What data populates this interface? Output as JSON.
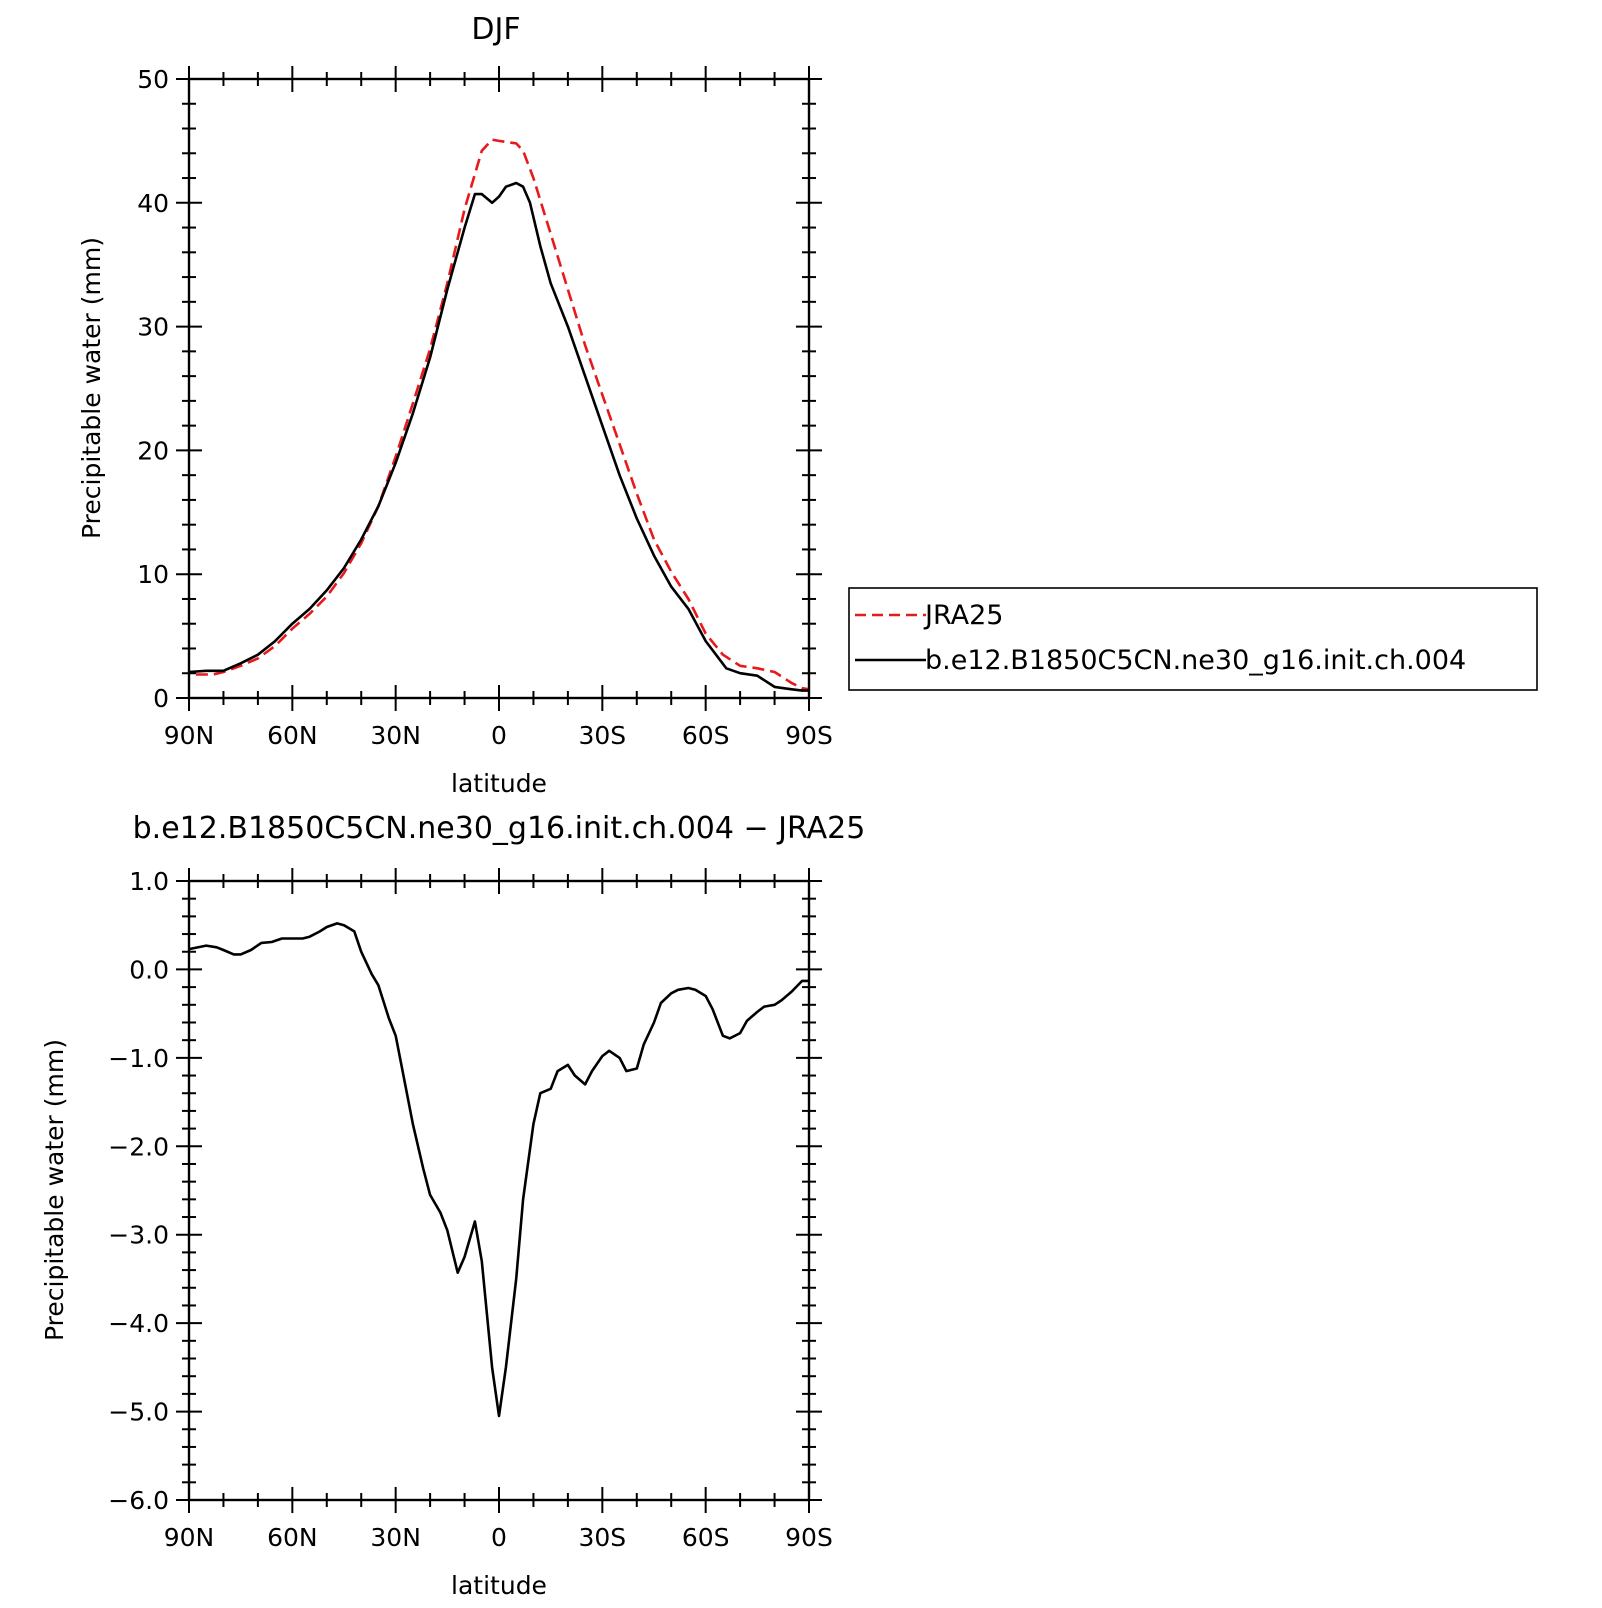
{
  "chart_data": [
    {
      "type": "line",
      "title": "DJF",
      "xlabel": "latitude",
      "ylabel": "Precipitable water (mm)",
      "xlim": [
        90,
        -90
      ],
      "ylim": [
        0,
        50
      ],
      "x_tick_values": [
        90,
        60,
        30,
        0,
        -30,
        -60,
        -90
      ],
      "x_tick_labels": [
        "90N",
        "60N",
        "30N",
        "0",
        "30S",
        "60S",
        "90S"
      ],
      "y_tick_values": [
        0,
        10,
        20,
        30,
        40,
        50
      ],
      "y_tick_labels": [
        "0",
        "10",
        "20",
        "30",
        "40",
        "50"
      ],
      "legend": {
        "placement": "right",
        "boxed": true
      },
      "series": [
        {
          "name": "JRA25",
          "color": "#e8191b",
          "dash": "dashed",
          "x": [
            88,
            83,
            80,
            75,
            70,
            65,
            60,
            55,
            50,
            45,
            40,
            35,
            30,
            25,
            20,
            15,
            10,
            5,
            2,
            0,
            -5,
            -7,
            -10,
            -15,
            -20,
            -25,
            -30,
            -35,
            -40,
            -45,
            -50,
            -55,
            -60,
            -65,
            -70,
            -75,
            -80,
            -85,
            -88,
            -90
          ],
          "y": [
            1.9,
            1.9,
            2.1,
            2.6,
            3.2,
            4.2,
            5.6,
            6.8,
            8.2,
            10.1,
            12.5,
            15.5,
            19.5,
            23.8,
            28.2,
            33.5,
            39.5,
            44.2,
            45.1,
            45.0,
            44.8,
            44.2,
            42.0,
            37.5,
            33.0,
            28.5,
            24.5,
            20.5,
            16.5,
            12.8,
            10.2,
            8.0,
            5.2,
            3.5,
            2.6,
            2.4,
            2.1,
            1.2,
            0.8,
            0.7
          ]
        },
        {
          "name": "b.e12.B1850C5CN.ne30_g16.init.ch.004",
          "color": "#000000",
          "dash": "solid",
          "x": [
            90,
            85,
            80,
            75,
            70,
            65,
            60,
            55,
            50,
            45,
            40,
            35,
            30,
            25,
            20,
            15,
            10,
            7,
            5,
            2,
            0,
            -2,
            -5,
            -7,
            -9,
            -12,
            -15,
            -20,
            -25,
            -30,
            -35,
            -40,
            -45,
            -50,
            -55,
            -60,
            -63,
            -66,
            -70,
            -75,
            -80,
            -85,
            -88,
            -90
          ],
          "y": [
            2.1,
            2.2,
            2.2,
            2.8,
            3.5,
            4.6,
            6.0,
            7.2,
            8.7,
            10.5,
            12.8,
            15.5,
            19.0,
            23.0,
            27.5,
            33.0,
            38.0,
            40.7,
            40.7,
            40.0,
            40.5,
            41.3,
            41.6,
            41.3,
            40.0,
            36.5,
            33.5,
            30.0,
            26.0,
            22.0,
            18.0,
            14.5,
            11.5,
            9.0,
            7.2,
            4.6,
            3.5,
            2.4,
            2.0,
            1.8,
            0.9,
            0.7,
            0.6,
            0.6
          ]
        }
      ]
    },
    {
      "type": "line",
      "title": "b.e12.B1850C5CN.ne30_g16.init.ch.004 − JRA25",
      "xlabel": "latitude",
      "ylabel": "Precipitable water (mm)",
      "xlim": [
        90,
        -90
      ],
      "ylim": [
        -6.0,
        1.0
      ],
      "x_tick_values": [
        90,
        60,
        30,
        0,
        -30,
        -60,
        -90
      ],
      "x_tick_labels": [
        "90N",
        "60N",
        "30N",
        "0",
        "30S",
        "60S",
        "90S"
      ],
      "y_tick_values": [
        1.0,
        0.0,
        -1.0,
        -2.0,
        -3.0,
        -4.0,
        -5.0,
        -6.0
      ],
      "y_tick_labels": [
        "1.0",
        "0.0",
        "−1.0",
        "−2.0",
        "−3.0",
        "−4.0",
        "−5.0",
        "−6.0"
      ],
      "series": [
        {
          "color": "#000000",
          "dash": "solid",
          "x": [
            90,
            85,
            82,
            80,
            77,
            75,
            72,
            69,
            66,
            63,
            60,
            57,
            55,
            52,
            50,
            47,
            45,
            42,
            40,
            37,
            35,
            32,
            30,
            28,
            25,
            22,
            20,
            17,
            15,
            12,
            10,
            7,
            5,
            2,
            0,
            -2,
            -5,
            -7,
            -10,
            -12,
            -15,
            -17,
            -20,
            -22,
            -25,
            -27,
            -30,
            -32,
            -35,
            -37,
            -40,
            -42,
            -45,
            -47,
            -50,
            -52,
            -55,
            -57,
            -60,
            -62,
            -65,
            -67,
            -70,
            -72,
            -75,
            -77,
            -80,
            -82,
            -85,
            -88,
            -90
          ],
          "y": [
            0.23,
            0.27,
            0.25,
            0.22,
            0.17,
            0.17,
            0.22,
            0.3,
            0.31,
            0.35,
            0.35,
            0.35,
            0.37,
            0.43,
            0.48,
            0.52,
            0.5,
            0.43,
            0.2,
            -0.05,
            -0.18,
            -0.55,
            -0.75,
            -1.15,
            -1.75,
            -2.25,
            -2.55,
            -2.75,
            -2.95,
            -3.43,
            -3.25,
            -2.85,
            -3.3,
            -4.5,
            -5.05,
            -4.5,
            -3.5,
            -2.6,
            -1.75,
            -1.4,
            -1.35,
            -1.15,
            -1.08,
            -1.2,
            -1.3,
            -1.15,
            -0.98,
            -0.92,
            -1.0,
            -1.15,
            -1.12,
            -0.85,
            -0.6,
            -0.38,
            -0.27,
            -0.23,
            -0.21,
            -0.23,
            -0.3,
            -0.45,
            -0.75,
            -0.78,
            -0.72,
            -0.58,
            -0.48,
            -0.42,
            -0.4,
            -0.35,
            -0.25,
            -0.13,
            -0.13
          ]
        }
      ]
    }
  ]
}
